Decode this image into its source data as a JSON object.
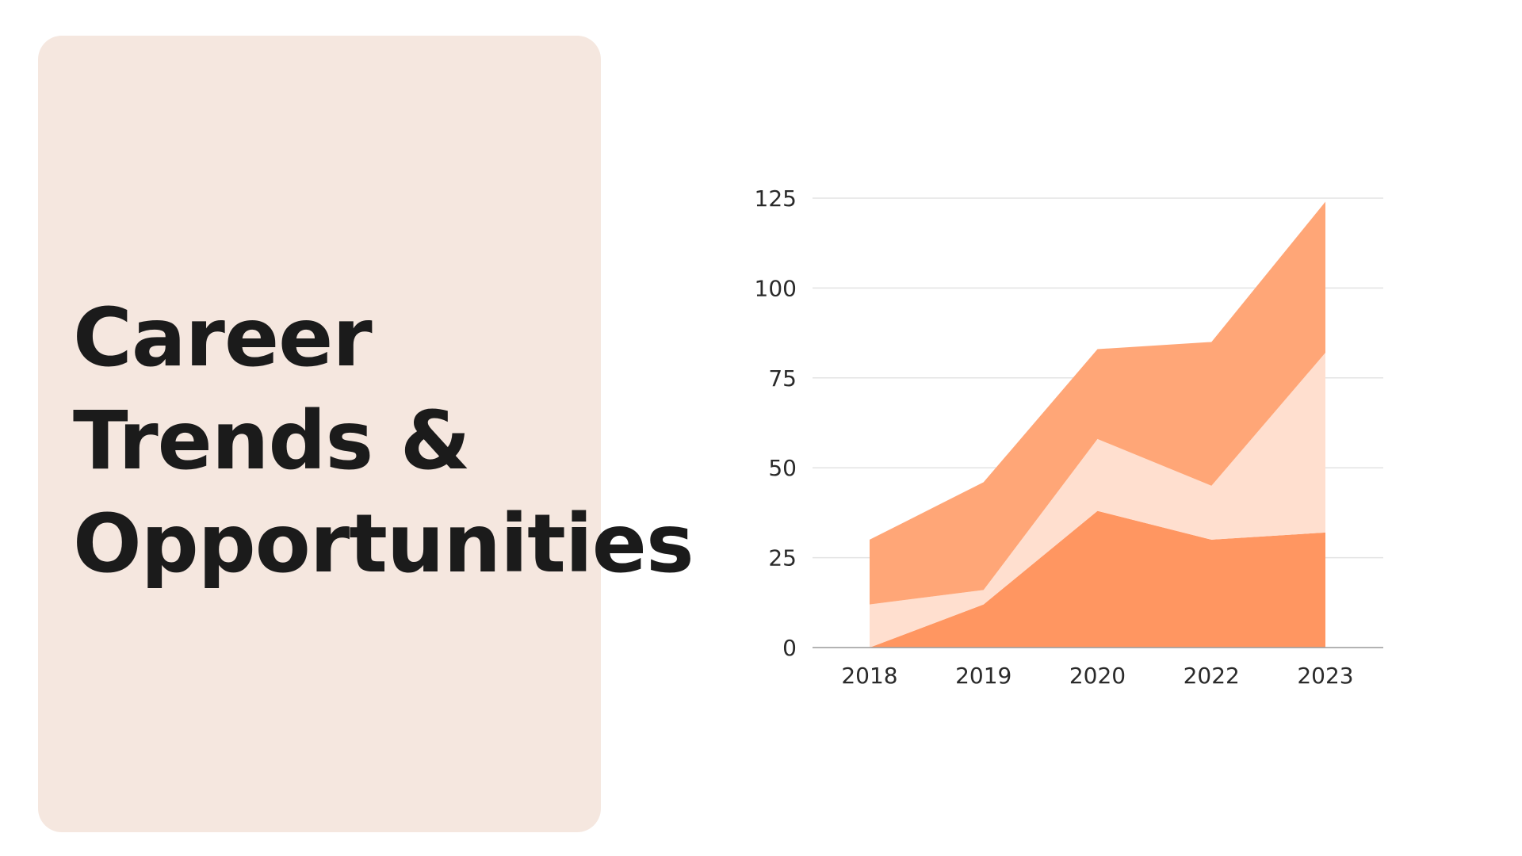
{
  "title": {
    "lines": [
      "Career",
      "Trends &",
      "Opportunities"
    ]
  },
  "colors": {
    "card_background": "#f5e7df",
    "series_bottom": "#ff9661",
    "series_middle": "#ffdfcf",
    "series_top": "#ffa677",
    "gridline": "#e3e3e3",
    "axis": "#9a9a9a"
  },
  "chart_data": {
    "type": "area",
    "stacked": true,
    "x": [
      "2018",
      "2019",
      "2020",
      "2022",
      "2023"
    ],
    "series": [
      {
        "values": [
          0,
          12,
          38,
          30,
          32
        ]
      },
      {
        "values": [
          12,
          4,
          20,
          15,
          50
        ]
      },
      {
        "values": [
          18,
          30,
          25,
          40,
          42
        ]
      }
    ],
    "ylim": [
      0,
      125
    ],
    "yticks": [
      "0",
      "25",
      "50",
      "75",
      "100",
      "125"
    ],
    "grid": true,
    "legend": "none",
    "title": "",
    "xlabel": "",
    "ylabel": ""
  }
}
